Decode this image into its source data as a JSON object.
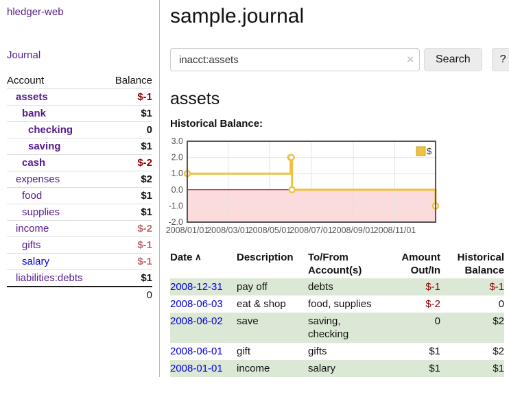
{
  "colors": {
    "link_purple": "#551a8b",
    "link_blue": "#0000e0",
    "negative_strong": "#8b0000",
    "negative_soft": "#bc6a6a",
    "row_green": "#dbe8d5",
    "series_gold": "#edc240",
    "negative_region_pink": "#fbdbdb",
    "zero_line_red": "#8b0000",
    "plot_border": "#545454",
    "grid_gray": "#e2e2e2"
  },
  "sidebar": {
    "app_title": "hledger-web",
    "journal_link": "Journal",
    "accounts_header": {
      "account": "Account",
      "balance": "Balance"
    },
    "accounts": [
      {
        "name": "assets",
        "indent": 1,
        "bold": true,
        "link": "purple",
        "balance": "$-1",
        "balance_style": "neg-strong"
      },
      {
        "name": "bank",
        "indent": 2,
        "bold": true,
        "link": "purple",
        "balance": "$1",
        "balance_style": "pos"
      },
      {
        "name": "checking",
        "indent": 3,
        "bold": true,
        "link": "purple",
        "balance": "0",
        "balance_style": "pos"
      },
      {
        "name": "saving",
        "indent": 3,
        "bold": true,
        "link": "purple",
        "balance": "$1",
        "balance_style": "pos"
      },
      {
        "name": "cash",
        "indent": 2,
        "bold": true,
        "link": "purple",
        "balance": "$-2",
        "balance_style": "neg-strong"
      },
      {
        "name": "expenses",
        "indent": 1,
        "bold": false,
        "link": "purple",
        "balance": "$2",
        "balance_style": "pos"
      },
      {
        "name": "food",
        "indent": 2,
        "bold": false,
        "link": "purple",
        "balance": "$1",
        "balance_style": "pos"
      },
      {
        "name": "supplies",
        "indent": 2,
        "bold": false,
        "link": "purple",
        "balance": "$1",
        "balance_style": "pos"
      },
      {
        "name": "income",
        "indent": 1,
        "bold": false,
        "link": "purple",
        "balance": "$-2",
        "balance_style": "neg-soft"
      },
      {
        "name": "gifts",
        "indent": 2,
        "bold": false,
        "link": "purple",
        "balance": "$-1",
        "balance_style": "neg-soft"
      },
      {
        "name": "salary",
        "indent": 2,
        "bold": false,
        "link": "blue",
        "balance": "$-1",
        "balance_style": "neg-soft"
      },
      {
        "name": "liabilities:debts",
        "indent": 1,
        "bold": false,
        "link": "purple",
        "balance": "$1",
        "balance_style": "pos"
      }
    ],
    "total": "0"
  },
  "main": {
    "title": "sample.journal",
    "search": {
      "value": "inacct:assets",
      "clear_icon": "×",
      "button_label": "Search",
      "help_label": "?"
    },
    "account_heading": "assets",
    "chart_title": "Historical Balance:"
  },
  "chart_data": {
    "type": "line",
    "style": "step",
    "title": "Historical Balance:",
    "series": [
      {
        "name": "$",
        "points": [
          [
            "2008-01-01",
            1
          ],
          [
            "2008-06-01",
            2
          ],
          [
            "2008-06-02",
            2
          ],
          [
            "2008-06-03",
            0
          ],
          [
            "2008-12-31",
            -1
          ]
        ]
      }
    ],
    "xlim": [
      "2008-01-01",
      "2008-12-31"
    ],
    "ylim": [
      -2,
      3
    ],
    "y_ticks": [
      "3.0",
      "2.0",
      "1.0",
      "0.0",
      "-1.0",
      "-2.0"
    ],
    "y_tick_values": [
      3,
      2,
      1,
      0,
      -1,
      -2
    ],
    "x_ticks": [
      "2008/01/01",
      "2008/03/01",
      "2008/05/01",
      "2008/07/01",
      "2008/09/01",
      "2008/11/01"
    ],
    "grid": true,
    "legend_position": "top-right",
    "negative_region_shaded": true
  },
  "register": {
    "columns": [
      {
        "lines": [
          "Date"
        ],
        "sort_indicator": "∧",
        "align": "left"
      },
      {
        "lines": [
          "Description"
        ],
        "align": "left"
      },
      {
        "lines": [
          "To/From",
          "Account(s)"
        ],
        "align": "left"
      },
      {
        "lines": [
          "Amount",
          "Out/In"
        ],
        "align": "right"
      },
      {
        "lines": [
          "Historical",
          "Balance"
        ],
        "align": "right"
      }
    ],
    "rows": [
      {
        "date": "2008-12-31",
        "description": "pay off",
        "accounts_lines": [
          "debts"
        ],
        "amount": "$-1",
        "amount_neg": true,
        "balance": "$-1",
        "balance_neg": true
      },
      {
        "date": "2008-06-03",
        "description": "eat & shop",
        "accounts_lines": [
          "food, supplies"
        ],
        "amount": "$-2",
        "amount_neg": true,
        "balance": "0",
        "balance_neg": false
      },
      {
        "date": "2008-06-02",
        "description": "save",
        "accounts_lines": [
          "saving,",
          "checking"
        ],
        "amount": "0",
        "amount_neg": false,
        "balance": "$2",
        "balance_neg": false
      },
      {
        "date": "2008-06-01",
        "description": "gift",
        "accounts_lines": [
          "gifts"
        ],
        "amount": "$1",
        "amount_neg": false,
        "balance": "$2",
        "balance_neg": false
      },
      {
        "date": "2008-01-01",
        "description": "income",
        "accounts_lines": [
          "salary"
        ],
        "amount": "$1",
        "amount_neg": false,
        "balance": "$1",
        "balance_neg": false
      }
    ]
  }
}
